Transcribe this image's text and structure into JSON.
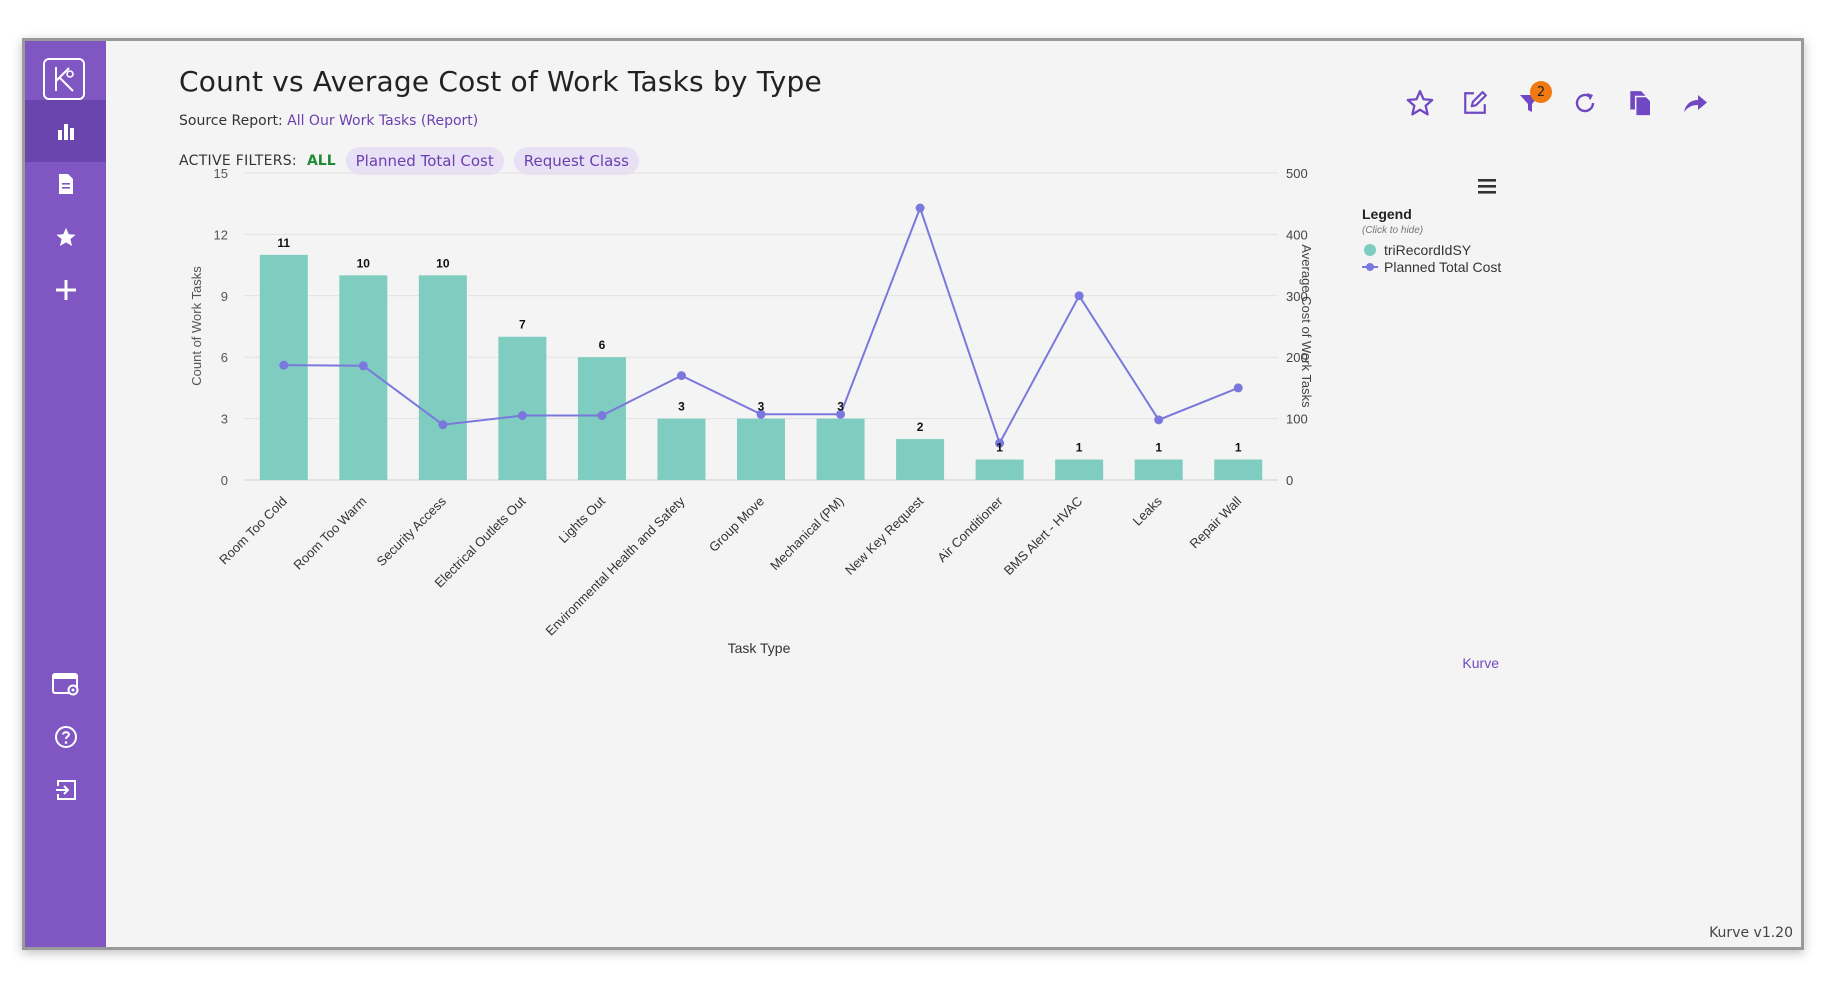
{
  "sidebar": {
    "logo": "kurve-logo-icon",
    "items": [
      {
        "icon": "bar-chart-icon",
        "active": true
      },
      {
        "icon": "document-icon",
        "active": false
      },
      {
        "icon": "star-icon",
        "active": false
      },
      {
        "icon": "plus-icon",
        "active": false
      }
    ],
    "bottom_items": [
      {
        "icon": "browser-settings-icon"
      },
      {
        "icon": "help-icon"
      },
      {
        "icon": "logout-icon"
      }
    ],
    "bg_color": "#7f56c2"
  },
  "header": {
    "title": "Count vs Average Cost of Work Tasks by Type",
    "source_label": "Source Report:",
    "source_link": "All Our Work Tasks (Report)"
  },
  "filters": {
    "label": "ACTIVE FILTERS:",
    "all_label": "ALL",
    "chips": [
      "Planned Total Cost",
      "Request Class"
    ]
  },
  "toolbar": {
    "icons": [
      "star-outline-icon",
      "edit-icon",
      "filter-icon",
      "refresh-icon",
      "copy-icon",
      "share-icon"
    ],
    "filter_count": "2",
    "accent_color": "#7048c4",
    "badge_color": "#f07a11"
  },
  "chart_data": {
    "type": "bar",
    "title": "",
    "xlabel": "Task Type",
    "ylabel": "Count of Work Tasks",
    "y2label": "Average Cost of Work Tasks",
    "ylim": [
      0,
      15
    ],
    "y2lim": [
      0,
      500
    ],
    "yticks": [
      0,
      3,
      6,
      9,
      12,
      15
    ],
    "y2ticks": [
      0,
      100,
      200,
      300,
      400,
      500
    ],
    "categories": [
      "Room Too Cold",
      "Room Too Warm",
      "Security Access",
      "Electrical Outlets Out",
      "Lights Out",
      "Environmental Health and Safety",
      "Group Move",
      "Mechanical (PM)",
      "New Key Request",
      "Air Conditioner",
      "BMS Alert - HVAC",
      "Leaks",
      "Repair Wall"
    ],
    "series": [
      {
        "name": "triRecordIdSY",
        "type": "bar",
        "axis": "left",
        "color": "#7ecdc0",
        "values": [
          11,
          10,
          10,
          7,
          6,
          3,
          3,
          3,
          2,
          1,
          1,
          1,
          1
        ]
      },
      {
        "name": "Planned Total Cost",
        "type": "line",
        "axis": "right",
        "color": "#7b78dd",
        "values": [
          187,
          186,
          90,
          105,
          105,
          170,
          107,
          107,
          443,
          60,
          300,
          98,
          150
        ]
      }
    ],
    "legend_title": "Legend",
    "legend_subtitle": "(Click to hide)",
    "legend_position": "right",
    "menu_icon": "hamburger-menu-icon",
    "credit": "Kurve"
  },
  "footer": {
    "version": "Kurve v1.20"
  }
}
